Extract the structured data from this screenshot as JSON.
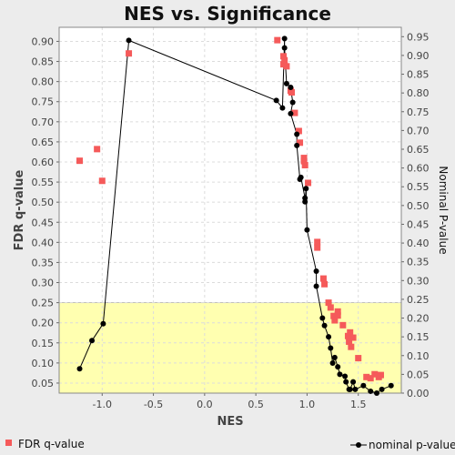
{
  "chart_data": {
    "type": "scatter",
    "title": "NES vs. Significance",
    "xlabel": "NES",
    "ylabel": "FDR q-value",
    "y2label": "Nominal P-value",
    "xlim": [
      -1.42,
      1.92
    ],
    "ylim": [
      0.025,
      0.935
    ],
    "y2lim": [
      0.0,
      0.975
    ],
    "xticks": [
      "-1.0",
      "-0.5",
      "0.0",
      "0.5",
      "1.0",
      "1.5"
    ],
    "xtick_values": [
      -1.0,
      -0.5,
      0.0,
      0.5,
      1.0,
      1.5
    ],
    "yticks": [
      "0.05",
      "0.10",
      "0.15",
      "0.20",
      "0.25",
      "0.30",
      "0.35",
      "0.40",
      "0.45",
      "0.50",
      "0.55",
      "0.60",
      "0.65",
      "0.70",
      "0.75",
      "0.80",
      "0.85",
      "0.90"
    ],
    "ytick_values": [
      0.05,
      0.1,
      0.15,
      0.2,
      0.25,
      0.3,
      0.35,
      0.4,
      0.45,
      0.5,
      0.55,
      0.6,
      0.65,
      0.7,
      0.75,
      0.8,
      0.85,
      0.9
    ],
    "y2ticks": [
      "0.00",
      "0.05",
      "0.10",
      "0.15",
      "0.20",
      "0.25",
      "0.30",
      "0.35",
      "0.40",
      "0.45",
      "0.50",
      "0.55",
      "0.60",
      "0.65",
      "0.70",
      "0.75",
      "0.80",
      "0.85",
      "0.90",
      "0.95"
    ],
    "y2tick_values": [
      0.0,
      0.05,
      0.1,
      0.15,
      0.2,
      0.25,
      0.3,
      0.35,
      0.4,
      0.45,
      0.5,
      0.55,
      0.6,
      0.65,
      0.7,
      0.75,
      0.8,
      0.85,
      0.9,
      0.95
    ],
    "grid": true,
    "highlight_region": {
      "y_from": 0.025,
      "y_to": 0.25,
      "color": "#ffffb0"
    },
    "colors": {
      "fdr": "#f55a5a",
      "nominal": "#000000",
      "line": "#000000",
      "plot_bg": "#ffffff",
      "page_bg": "#ececec"
    },
    "series": [
      {
        "name": "FDR q-value",
        "axis": "left",
        "marker": "square",
        "points": [
          [
            -1.22,
            0.603
          ],
          [
            -1.05,
            0.632
          ],
          [
            -1.0,
            0.553
          ],
          [
            -0.74,
            0.87
          ],
          [
            0.71,
            0.903
          ],
          [
            0.77,
            0.863
          ],
          [
            0.78,
            0.853
          ],
          [
            0.77,
            0.843
          ],
          [
            0.8,
            0.838
          ],
          [
            0.84,
            0.777
          ],
          [
            0.85,
            0.773
          ],
          [
            0.88,
            0.722
          ],
          [
            0.92,
            0.677
          ],
          [
            0.93,
            0.648
          ],
          [
            0.97,
            0.61
          ],
          [
            0.97,
            0.602
          ],
          [
            0.98,
            0.592
          ],
          [
            1.01,
            0.548
          ],
          [
            1.1,
            0.401
          ],
          [
            1.1,
            0.387
          ],
          [
            1.16,
            0.31
          ],
          [
            1.17,
            0.296
          ],
          [
            1.21,
            0.25
          ],
          [
            1.23,
            0.238
          ],
          [
            1.26,
            0.217
          ],
          [
            1.27,
            0.206
          ],
          [
            1.3,
            0.228
          ],
          [
            1.3,
            0.218
          ],
          [
            1.35,
            0.194
          ],
          [
            1.4,
            0.167
          ],
          [
            1.41,
            0.153
          ],
          [
            1.42,
            0.176
          ],
          [
            1.43,
            0.14
          ],
          [
            1.45,
            0.163
          ],
          [
            1.5,
            0.112
          ],
          [
            1.58,
            0.065
          ],
          [
            1.62,
            0.062
          ],
          [
            1.66,
            0.072
          ],
          [
            1.7,
            0.065
          ],
          [
            1.72,
            0.07
          ]
        ]
      },
      {
        "name": "nominal p-value",
        "axis": "right",
        "marker": "circle",
        "line": true,
        "points": [
          [
            -1.22,
            0.065
          ],
          [
            -1.1,
            0.14
          ],
          [
            -0.99,
            0.185
          ],
          [
            -0.74,
            0.94
          ],
          [
            0.7,
            0.78
          ],
          [
            0.76,
            0.76
          ],
          [
            0.78,
            0.945
          ],
          [
            0.78,
            0.92
          ],
          [
            0.8,
            0.825
          ],
          [
            0.84,
            0.815
          ],
          [
            0.86,
            0.775
          ],
          [
            0.84,
            0.745
          ],
          [
            0.9,
            0.69
          ],
          [
            0.9,
            0.66
          ],
          [
            0.93,
            0.57
          ],
          [
            0.94,
            0.575
          ],
          [
            0.98,
            0.52
          ],
          [
            0.98,
            0.51
          ],
          [
            0.99,
            0.545
          ],
          [
            1.0,
            0.435
          ],
          [
            1.09,
            0.325
          ],
          [
            1.09,
            0.285
          ],
          [
            1.15,
            0.2
          ],
          [
            1.17,
            0.18
          ],
          [
            1.21,
            0.15
          ],
          [
            1.23,
            0.12
          ],
          [
            1.25,
            0.08
          ],
          [
            1.27,
            0.095
          ],
          [
            1.3,
            0.07
          ],
          [
            1.32,
            0.05
          ],
          [
            1.37,
            0.045
          ],
          [
            1.38,
            0.03
          ],
          [
            1.41,
            0.01
          ],
          [
            1.42,
            0.01
          ],
          [
            1.45,
            0.03
          ],
          [
            1.47,
            0.01
          ],
          [
            1.55,
            0.02
          ],
          [
            1.62,
            0.005
          ],
          [
            1.68,
            0.0
          ],
          [
            1.73,
            0.01
          ],
          [
            1.82,
            0.02
          ]
        ]
      }
    ],
    "legend": {
      "placement": "bottom",
      "entries": [
        "FDR q-value",
        "nominal p-value"
      ]
    }
  }
}
